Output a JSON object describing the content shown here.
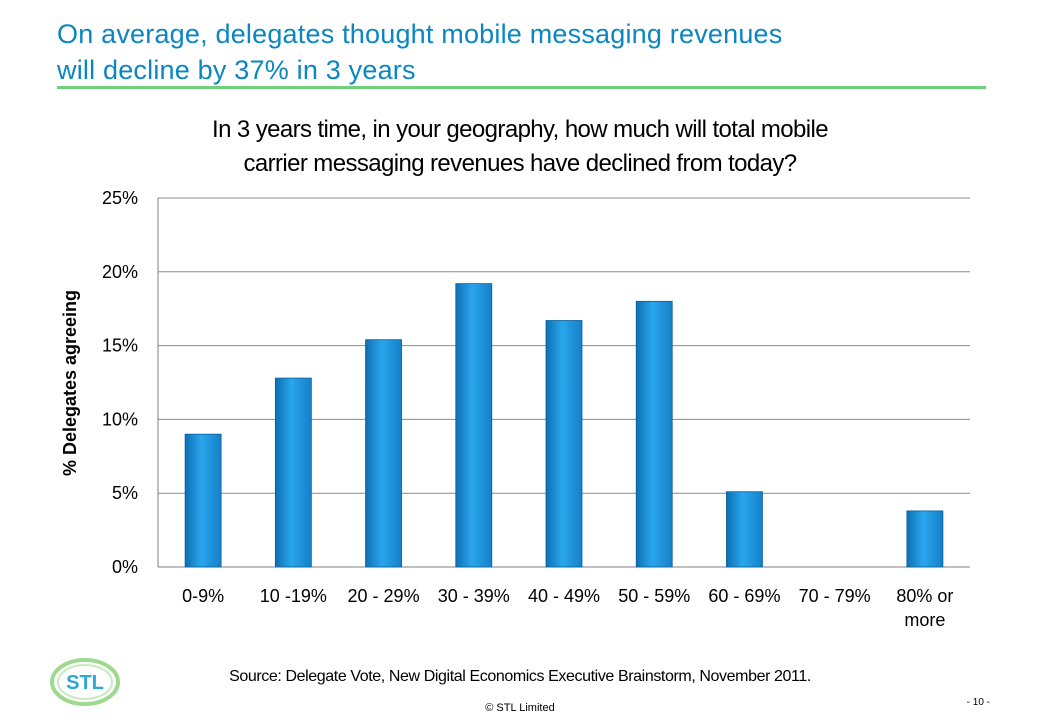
{
  "slide": {
    "title_line1": "On average, delegates thought mobile messaging revenues",
    "title_line2": "will decline by 37% in 3 years",
    "accent_color": "#0a86c2",
    "rule_color": "#70cf7a",
    "source": "Source: Delegate Vote, New Digital Economics Executive Brainstorm, November 2011.",
    "page_number": "- 10 -",
    "copyright": "© STL Limited",
    "logo_text": "STL",
    "logo_color": "#2aa8d8"
  },
  "chart_data": {
    "type": "bar",
    "title_line1": "In 3 years time, in your geography, how much will total mobile",
    "title_line2": "carrier messaging revenues have declined from today?",
    "xlabel": "",
    "ylabel": "% Delegates agreeing",
    "categories": [
      [
        "0-9%"
      ],
      [
        "10 -19%"
      ],
      [
        "20 - 29%"
      ],
      [
        "30 - 39%"
      ],
      [
        "40 - 49%"
      ],
      [
        "50 - 59%"
      ],
      [
        "60 - 69%"
      ],
      [
        "70 - 79%"
      ],
      [
        "80% or",
        "more"
      ]
    ],
    "values": [
      9.0,
      12.8,
      15.4,
      19.2,
      16.7,
      18.0,
      5.1,
      0,
      3.8
    ],
    "ylim": [
      0,
      25
    ],
    "yticks": [
      0,
      5,
      10,
      15,
      20,
      25
    ],
    "ytick_labels": [
      "0%",
      "5%",
      "10%",
      "15%",
      "20%",
      "25%"
    ],
    "grid": true,
    "bar_color": "#1a8fd6"
  }
}
